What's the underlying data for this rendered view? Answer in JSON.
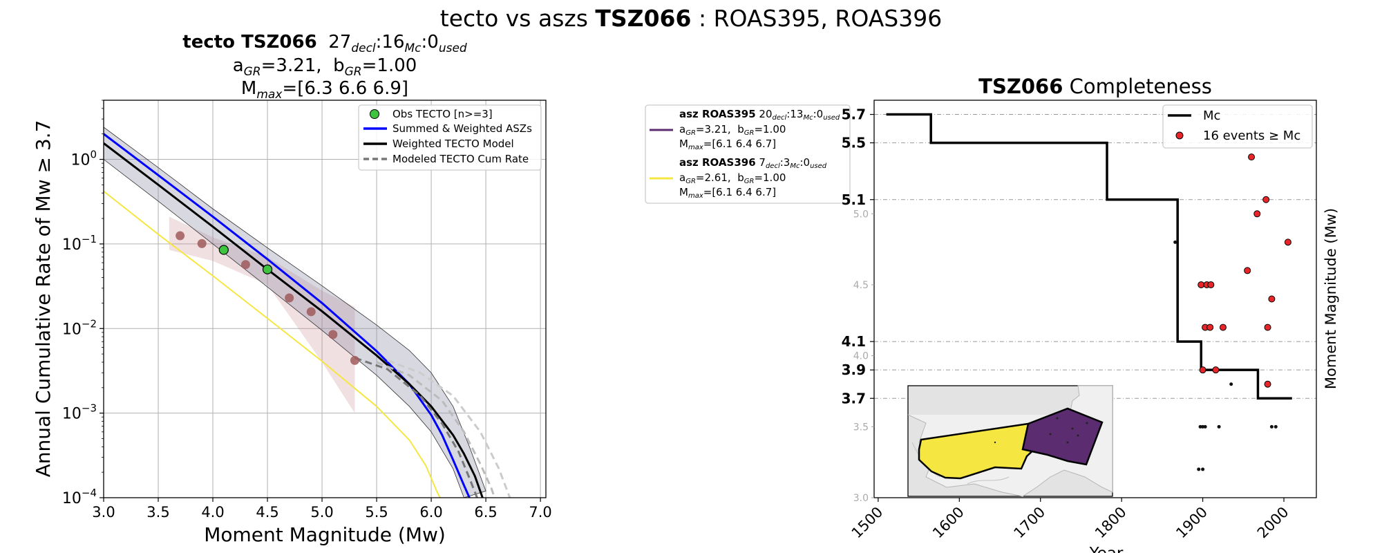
{
  "suptitle": {
    "prefix": "tecto vs aszs ",
    "zone": "TSZ066",
    "suffix": " : ROAS395, ROAS396"
  },
  "left_panel": {
    "title_zone": "tecto TSZ066",
    "title_counts": {
      "decl": "27",
      "decl_sub": "decl",
      "mc": "16",
      "mc_sub": "Mc",
      "used": "0",
      "used_sub": "used"
    },
    "params": {
      "a_label": "a",
      "a_sub": "GR",
      "a_value": "=3.21,",
      "b_label": "b",
      "b_sub": "GR",
      "b_value": "=1.00"
    },
    "mmax": {
      "label": "M",
      "sub": "max",
      "value": "=[6.3 6.6 6.9]"
    }
  },
  "middle_legend": {
    "entries": [
      {
        "title": "asz ROAS395",
        "decl": "20",
        "mc": "13",
        "used": "0",
        "a": "=3.21,",
        "b": "=1.00",
        "mmax": "=[6.1 6.4 6.7]",
        "color": "#5b2c6f"
      },
      {
        "title": "asz ROAS396",
        "decl": "7",
        "mc": "3",
        "used": "0",
        "a": "=2.61,",
        "b": "=1.00",
        "mmax": "=[6.1 6.4 6.7]",
        "color": "#f5e642"
      }
    ],
    "subs": {
      "decl": "decl",
      "mc": "Mc",
      "used": "used",
      "gr": "GR",
      "max": "max"
    }
  },
  "right_panel": {
    "title_zone": "TSZ066",
    "title_rest": " Completeness",
    "legend": {
      "line": "Mc",
      "points": "16 events ≥ Mc"
    }
  },
  "chart_data": [
    {
      "type": "line",
      "title": "",
      "xlabel": "Moment Magnitude (Mw)",
      "ylabel": "Annual Cumulative Rate of Mw  ≥  3.7",
      "xlim": [
        3.0,
        7.05
      ],
      "ylim": [
        0.0001,
        5
      ],
      "yscale": "log",
      "grid": true,
      "legend_position": "top-right",
      "xticks": [
        "3.0",
        "3.5",
        "4.0",
        "4.5",
        "5.0",
        "5.5",
        "6.0",
        "6.5",
        "7.0"
      ],
      "yticks": [
        {
          "base": "10",
          "exp": "0",
          "value": 1
        },
        {
          "base": "10",
          "exp": "−1",
          "value": 0.1
        },
        {
          "base": "10",
          "exp": "−2",
          "value": 0.01
        },
        {
          "base": "10",
          "exp": "−3",
          "value": 0.001
        },
        {
          "base": "10",
          "exp": "−4",
          "value": 0.0001
        }
      ],
      "legend": [
        "Obs TECTO [n>=3]",
        "Summed & Weighted ASZs",
        "Weighted TECTO Model",
        "Modeled TECTO Cum Rate"
      ],
      "observed": {
        "name": "Obs TECTO [n>=3]",
        "points": [
          [
            4.1,
            0.085
          ],
          [
            4.5,
            0.05
          ]
        ]
      },
      "binned_rates": {
        "points": [
          [
            3.7,
            0.125
          ],
          [
            3.9,
            0.101
          ],
          [
            4.1,
            0.085
          ],
          [
            4.3,
            0.057
          ],
          [
            4.5,
            0.05
          ],
          [
            4.7,
            0.023
          ],
          [
            4.9,
            0.0158
          ],
          [
            5.1,
            0.0085
          ],
          [
            5.3,
            0.0042
          ]
        ]
      },
      "series": [
        {
          "name": "Summed & Weighted ASZs",
          "color": "#0000ff",
          "width": 3,
          "points": [
            [
              3.0,
              2.0
            ],
            [
              3.5,
              0.65
            ],
            [
              4.0,
              0.21
            ],
            [
              4.5,
              0.066
            ],
            [
              5.0,
              0.02
            ],
            [
              5.5,
              0.0054
            ],
            [
              5.8,
              0.0022
            ],
            [
              6.0,
              0.00095
            ],
            [
              6.1,
              0.00055
            ],
            [
              6.2,
              0.00028
            ],
            [
              6.3,
              0.00014
            ],
            [
              6.35,
              0.0001
            ]
          ]
        },
        {
          "name": "Weighted TECTO Model",
          "color": "#000000",
          "width": 3,
          "points": [
            [
              3.0,
              1.55
            ],
            [
              3.5,
              0.5
            ],
            [
              4.0,
              0.16
            ],
            [
              4.5,
              0.05
            ],
            [
              5.0,
              0.016
            ],
            [
              5.5,
              0.0048
            ],
            [
              5.8,
              0.0022
            ],
            [
              6.0,
              0.0012
            ],
            [
              6.2,
              0.00055
            ],
            [
              6.3,
              0.00033
            ],
            [
              6.4,
              0.00018
            ],
            [
              6.47,
              0.0001
            ]
          ]
        },
        {
          "name": "",
          "color": "#f5e642",
          "width": 2,
          "points": [
            [
              3.0,
              0.42
            ],
            [
              3.5,
              0.13
            ],
            [
              4.0,
              0.042
            ],
            [
              4.5,
              0.0132
            ],
            [
              5.0,
              0.0041
            ],
            [
              5.5,
              0.0012
            ],
            [
              5.8,
              0.00048
            ],
            [
              5.95,
              0.00024
            ],
            [
              6.05,
              0.00012
            ],
            [
              6.08,
              0.0001
            ]
          ]
        },
        {
          "name": "Modeled TECTO Cum Rate",
          "color": "#777777",
          "width": 3,
          "dash": "10,6",
          "points": [
            [
              5.3,
              0.0045
            ],
            [
              5.6,
              0.0033
            ],
            [
              5.9,
              0.0016
            ],
            [
              6.1,
              0.00075
            ],
            [
              6.25,
              0.00035
            ],
            [
              6.35,
              0.00017
            ],
            [
              6.42,
              0.0001
            ]
          ]
        },
        {
          "name": "",
          "color": "#bbbbbb",
          "width": 3,
          "dash": "10,6",
          "points": [
            [
              5.5,
              0.004
            ],
            [
              5.8,
              0.0028
            ],
            [
              6.1,
              0.0014
            ],
            [
              6.3,
              0.0006
            ],
            [
              6.45,
              0.00025
            ],
            [
              6.55,
              0.00013
            ],
            [
              6.58,
              0.0001
            ]
          ]
        },
        {
          "name": "",
          "color": "#cccccc",
          "width": 3,
          "dash": "10,6",
          "points": [
            [
              5.6,
              0.0042
            ],
            [
              5.9,
              0.003
            ],
            [
              6.2,
              0.0016
            ],
            [
              6.45,
              0.0006
            ],
            [
              6.62,
              0.00022
            ],
            [
              6.72,
              0.0001
            ]
          ]
        }
      ],
      "model_band": {
        "upper": [
          [
            3.0,
            2.4
          ],
          [
            3.5,
            0.8
          ],
          [
            4.0,
            0.26
          ],
          [
            4.5,
            0.09
          ],
          [
            5.0,
            0.032
          ],
          [
            5.5,
            0.011
          ],
          [
            5.8,
            0.0055
          ],
          [
            6.0,
            0.003
          ],
          [
            6.2,
            0.0012
          ],
          [
            6.35,
            0.0004
          ],
          [
            6.5,
            0.00012
          ]
        ],
        "lower": [
          [
            3.0,
            1.0
          ],
          [
            3.5,
            0.32
          ],
          [
            4.0,
            0.1
          ],
          [
            4.5,
            0.031
          ],
          [
            5.0,
            0.0095
          ],
          [
            5.5,
            0.0028
          ],
          [
            5.8,
            0.0012
          ],
          [
            6.0,
            0.0006
          ],
          [
            6.2,
            0.00022
          ],
          [
            6.3,
            0.0001
          ]
        ]
      },
      "observed_band": {
        "upper": [
          [
            3.6,
            0.21
          ],
          [
            4.0,
            0.12
          ],
          [
            4.5,
            0.07
          ],
          [
            5.0,
            0.028
          ],
          [
            5.3,
            0.018
          ]
        ],
        "lower": [
          [
            3.6,
            0.085
          ],
          [
            4.0,
            0.063
          ],
          [
            4.5,
            0.033
          ],
          [
            5.0,
            0.004
          ],
          [
            5.3,
            0.001
          ]
        ]
      }
    },
    {
      "type": "scatter",
      "title": "TSZ066 Completeness",
      "xlabel": "Year",
      "ylabel": "Moment Magnitude (Mw)",
      "xlim": [
        1495,
        2040
      ],
      "ylim": [
        3.0,
        5.8
      ],
      "legend_position": "top-right",
      "xticks": [
        "1500",
        "1600",
        "1700",
        "1800",
        "1900",
        "2000"
      ],
      "yticks_minor": [
        "3.0",
        "3.5",
        "4.0",
        "4.5",
        "5.0"
      ],
      "yticks_major": [
        "3.7",
        "3.9",
        "4.1",
        "5.1",
        "5.5",
        "5.7"
      ],
      "mc_steps": [
        [
          1510,
          5.7
        ],
        [
          1565,
          5.7
        ],
        [
          1565,
          5.5
        ],
        [
          1782,
          5.5
        ],
        [
          1782,
          5.1
        ],
        [
          1869,
          5.1
        ],
        [
          1869,
          4.1
        ],
        [
          1898,
          4.1
        ],
        [
          1898,
          3.9
        ],
        [
          1968,
          3.9
        ],
        [
          1968,
          3.7
        ],
        [
          2010,
          3.7
        ]
      ],
      "events_above_mc": [
        [
          1960,
          5.4
        ],
        [
          1978,
          5.1
        ],
        [
          1967,
          5.0
        ],
        [
          2005,
          4.8
        ],
        [
          1955,
          4.6
        ],
        [
          1898,
          4.5
        ],
        [
          1905,
          4.5
        ],
        [
          1910,
          4.5
        ],
        [
          1985,
          4.4
        ],
        [
          1903,
          4.2
        ],
        [
          1909,
          4.2
        ],
        [
          1925,
          4.2
        ],
        [
          1980,
          4.2
        ],
        [
          1900,
          3.9
        ],
        [
          1916,
          3.9
        ],
        [
          1980,
          3.8
        ]
      ],
      "events_below_mc": [
        [
          1866,
          4.8
        ],
        [
          1935,
          3.8
        ],
        [
          1897,
          3.5
        ],
        [
          1900,
          3.5
        ],
        [
          1903,
          3.5
        ],
        [
          1920,
          3.5
        ],
        [
          1985,
          3.5
        ],
        [
          1990,
          3.5
        ],
        [
          1895,
          3.2
        ],
        [
          1900,
          3.2
        ]
      ]
    }
  ],
  "inset_map": {
    "polygons": [
      {
        "name": "ROAS396",
        "color": "#f5e642"
      },
      {
        "name": "ROAS395",
        "color": "#5b2c6f"
      }
    ]
  }
}
